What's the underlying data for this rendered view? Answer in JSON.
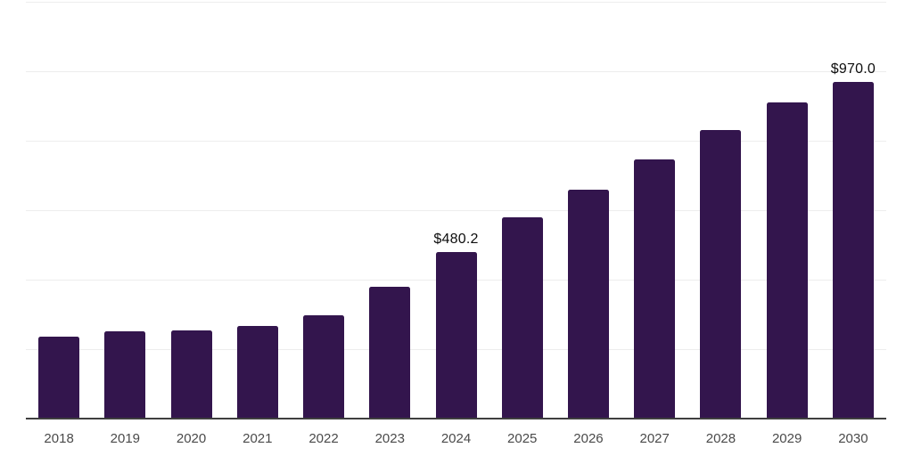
{
  "chart_data": {
    "type": "bar",
    "title": "",
    "xlabel": "",
    "ylabel": "",
    "categories": [
      "2018",
      "2019",
      "2020",
      "2021",
      "2022",
      "2023",
      "2024",
      "2025",
      "2026",
      "2027",
      "2028",
      "2029",
      "2030"
    ],
    "values": [
      235,
      252,
      255,
      267,
      297,
      379,
      480.2,
      580,
      658,
      745,
      830,
      910,
      970
    ],
    "bar_labels": [
      null,
      null,
      null,
      null,
      null,
      null,
      "$480.2",
      null,
      null,
      null,
      null,
      null,
      "$970.0"
    ],
    "ylim": [
      0,
      1200
    ],
    "yticks": [
      0,
      200,
      400,
      600,
      800,
      1000,
      1200
    ],
    "grid": true,
    "legend": "none",
    "y_tick_labels_visible": false
  },
  "colors": {
    "background": "#ffffff",
    "bar_fill": "#33154d",
    "gridline": "#ededed",
    "axis_line": "#3f3f3f",
    "tick_text": "#4a4a4a",
    "value_label_text": "#0d0d0d"
  }
}
